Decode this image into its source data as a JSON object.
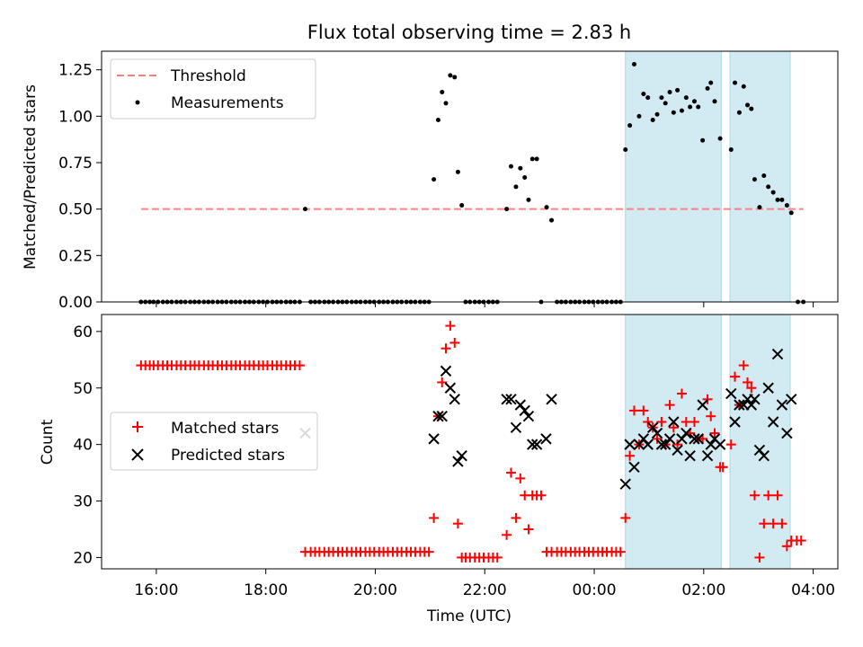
{
  "chart_data": {
    "title": "Flux total observing time = 2.83 h",
    "shaded_intervals_hours": [
      [
        24.57,
        26.32
      ],
      [
        26.48,
        27.58
      ]
    ],
    "shade_color": "#add8e6",
    "top": {
      "type": "scatter",
      "ylabel": "Matched/Predicted stars",
      "ylim": [
        0,
        1.35
      ],
      "yticks": [
        0,
        0.25,
        0.5,
        0.75,
        1.0,
        1.25
      ],
      "ytick_labels": [
        "0.00",
        "0.25",
        "0.50",
        "0.75",
        "1.00",
        "1.25"
      ],
      "threshold": {
        "label": "Threshold",
        "value": 0.5,
        "x_range": [
          15.72,
          27.82
        ],
        "color": "#ff8080"
      },
      "legend": {
        "placement": "top-left",
        "entries": [
          "Threshold",
          "Measurements"
        ]
      },
      "measurements_label": "Measurements",
      "measurements": [
        [
          15.72,
          0
        ],
        [
          15.8,
          0
        ],
        [
          15.88,
          0
        ],
        [
          15.95,
          0
        ],
        [
          16.03,
          0
        ],
        [
          16.12,
          0
        ],
        [
          16.2,
          0
        ],
        [
          16.28,
          0
        ],
        [
          16.37,
          0
        ],
        [
          16.45,
          0
        ],
        [
          16.53,
          0
        ],
        [
          16.62,
          0
        ],
        [
          16.7,
          0
        ],
        [
          16.78,
          0
        ],
        [
          16.87,
          0
        ],
        [
          16.95,
          0
        ],
        [
          17.03,
          0
        ],
        [
          17.12,
          0
        ],
        [
          17.2,
          0
        ],
        [
          17.28,
          0
        ],
        [
          17.37,
          0
        ],
        [
          17.45,
          0
        ],
        [
          17.53,
          0
        ],
        [
          17.62,
          0
        ],
        [
          17.7,
          0
        ],
        [
          17.78,
          0
        ],
        [
          17.87,
          0
        ],
        [
          17.95,
          0
        ],
        [
          18.03,
          0
        ],
        [
          18.12,
          0
        ],
        [
          18.2,
          0
        ],
        [
          18.28,
          0
        ],
        [
          18.37,
          0
        ],
        [
          18.45,
          0
        ],
        [
          18.53,
          0
        ],
        [
          18.62,
          0
        ],
        [
          18.72,
          0.5
        ],
        [
          18.82,
          0
        ],
        [
          18.9,
          0
        ],
        [
          18.98,
          0
        ],
        [
          19.07,
          0
        ],
        [
          19.15,
          0
        ],
        [
          19.23,
          0
        ],
        [
          19.32,
          0
        ],
        [
          19.4,
          0
        ],
        [
          19.48,
          0
        ],
        [
          19.57,
          0
        ],
        [
          19.65,
          0
        ],
        [
          19.73,
          0
        ],
        [
          19.82,
          0
        ],
        [
          19.9,
          0
        ],
        [
          19.98,
          0
        ],
        [
          20.07,
          0
        ],
        [
          20.15,
          0
        ],
        [
          20.23,
          0
        ],
        [
          20.32,
          0
        ],
        [
          20.4,
          0
        ],
        [
          20.48,
          0
        ],
        [
          20.57,
          0
        ],
        [
          20.65,
          0
        ],
        [
          20.73,
          0
        ],
        [
          20.82,
          0
        ],
        [
          20.9,
          0
        ],
        [
          20.98,
          0
        ],
        [
          21.07,
          0.66
        ],
        [
          21.15,
          0.98
        ],
        [
          21.22,
          1.13
        ],
        [
          21.29,
          1.07
        ],
        [
          21.37,
          1.22
        ],
        [
          21.45,
          1.21
        ],
        [
          21.51,
          0.7
        ],
        [
          21.58,
          0.52
        ],
        [
          21.65,
          0
        ],
        [
          21.73,
          0
        ],
        [
          21.82,
          0
        ],
        [
          21.9,
          0
        ],
        [
          21.98,
          0
        ],
        [
          22.07,
          0
        ],
        [
          22.15,
          0
        ],
        [
          22.23,
          0
        ],
        [
          22.4,
          0.5
        ],
        [
          22.48,
          0.73
        ],
        [
          22.57,
          0.62
        ],
        [
          22.65,
          0.72
        ],
        [
          22.73,
          0.67
        ],
        [
          22.8,
          0.55
        ],
        [
          22.87,
          0.77
        ],
        [
          22.95,
          0.77
        ],
        [
          23.03,
          0
        ],
        [
          23.13,
          0.51
        ],
        [
          23.22,
          0.44
        ],
        [
          23.32,
          0
        ],
        [
          23.4,
          0
        ],
        [
          23.48,
          0
        ],
        [
          23.57,
          0
        ],
        [
          23.65,
          0
        ],
        [
          23.73,
          0
        ],
        [
          23.82,
          0
        ],
        [
          23.9,
          0
        ],
        [
          23.98,
          0
        ],
        [
          24.07,
          0
        ],
        [
          24.15,
          0
        ],
        [
          24.23,
          0
        ],
        [
          24.32,
          0
        ],
        [
          24.4,
          0
        ],
        [
          24.48,
          0
        ],
        [
          24.57,
          0.82
        ],
        [
          24.65,
          0.95
        ],
        [
          24.73,
          1.28
        ],
        [
          24.82,
          1.0
        ],
        [
          24.9,
          1.12
        ],
        [
          24.98,
          1.1
        ],
        [
          25.07,
          0.98
        ],
        [
          25.15,
          1.01
        ],
        [
          25.23,
          1.1
        ],
        [
          25.3,
          1.07
        ],
        [
          25.38,
          1.13
        ],
        [
          25.45,
          1.02
        ],
        [
          25.52,
          1.14
        ],
        [
          25.6,
          1.03
        ],
        [
          25.68,
          1.1
        ],
        [
          25.75,
          1.05
        ],
        [
          25.83,
          1.08
        ],
        [
          25.9,
          1.05
        ],
        [
          25.98,
          0.87
        ],
        [
          26.07,
          1.15
        ],
        [
          26.13,
          1.18
        ],
        [
          26.2,
          1.08
        ],
        [
          26.3,
          0.88
        ],
        [
          26.5,
          0.82
        ],
        [
          26.57,
          1.18
        ],
        [
          26.65,
          1.02
        ],
        [
          26.73,
          1.16
        ],
        [
          26.8,
          1.06
        ],
        [
          26.87,
          1.04
        ],
        [
          26.93,
          0.66
        ],
        [
          27.02,
          0.51
        ],
        [
          27.1,
          0.68
        ],
        [
          27.18,
          0.62
        ],
        [
          27.27,
          0.59
        ],
        [
          27.35,
          0.55
        ],
        [
          27.43,
          0.55
        ],
        [
          27.52,
          0.52
        ],
        [
          27.6,
          0.48
        ],
        [
          27.72,
          0
        ],
        [
          27.82,
          0
        ]
      ]
    },
    "bottom": {
      "type": "scatter",
      "xlabel": "Time (UTC)",
      "ylabel": "Count",
      "xlim": [
        15.0,
        28.45
      ],
      "ylim": [
        18,
        63
      ],
      "yticks": [
        20,
        30,
        40,
        50,
        60
      ],
      "xticks": [
        16,
        18,
        20,
        22,
        24,
        26,
        28
      ],
      "xtick_labels": [
        "16:00",
        "18:00",
        "20:00",
        "22:00",
        "00:00",
        "02:00",
        "04:00"
      ],
      "legend": {
        "placement": "center-left",
        "entries": [
          "Matched stars",
          "Predicted stars"
        ]
      },
      "matched_label": "Matched stars",
      "predicted_label": "Predicted stars",
      "matched_color": "#ff0000",
      "predicted_color": "#000000",
      "matched": [
        [
          15.72,
          54
        ],
        [
          15.8,
          54
        ],
        [
          15.88,
          54
        ],
        [
          15.95,
          54
        ],
        [
          16.03,
          54
        ],
        [
          16.12,
          54
        ],
        [
          16.2,
          54
        ],
        [
          16.28,
          54
        ],
        [
          16.37,
          54
        ],
        [
          16.45,
          54
        ],
        [
          16.53,
          54
        ],
        [
          16.62,
          54
        ],
        [
          16.7,
          54
        ],
        [
          16.78,
          54
        ],
        [
          16.87,
          54
        ],
        [
          16.95,
          54
        ],
        [
          17.03,
          54
        ],
        [
          17.12,
          54
        ],
        [
          17.2,
          54
        ],
        [
          17.28,
          54
        ],
        [
          17.37,
          54
        ],
        [
          17.45,
          54
        ],
        [
          17.53,
          54
        ],
        [
          17.62,
          54
        ],
        [
          17.7,
          54
        ],
        [
          17.78,
          54
        ],
        [
          17.87,
          54
        ],
        [
          17.95,
          54
        ],
        [
          18.03,
          54
        ],
        [
          18.12,
          54
        ],
        [
          18.2,
          54
        ],
        [
          18.28,
          54
        ],
        [
          18.37,
          54
        ],
        [
          18.45,
          54
        ],
        [
          18.53,
          54
        ],
        [
          18.62,
          54
        ],
        [
          18.72,
          21
        ],
        [
          18.82,
          21
        ],
        [
          18.9,
          21
        ],
        [
          18.98,
          21
        ],
        [
          19.07,
          21
        ],
        [
          19.15,
          21
        ],
        [
          19.23,
          21
        ],
        [
          19.32,
          21
        ],
        [
          19.4,
          21
        ],
        [
          19.48,
          21
        ],
        [
          19.57,
          21
        ],
        [
          19.65,
          21
        ],
        [
          19.73,
          21
        ],
        [
          19.82,
          21
        ],
        [
          19.9,
          21
        ],
        [
          19.98,
          21
        ],
        [
          20.07,
          21
        ],
        [
          20.15,
          21
        ],
        [
          20.23,
          21
        ],
        [
          20.32,
          21
        ],
        [
          20.4,
          21
        ],
        [
          20.48,
          21
        ],
        [
          20.57,
          21
        ],
        [
          20.65,
          21
        ],
        [
          20.73,
          21
        ],
        [
          20.82,
          21
        ],
        [
          20.9,
          21
        ],
        [
          20.98,
          21
        ],
        [
          21.07,
          27
        ],
        [
          21.15,
          45
        ],
        [
          21.22,
          51
        ],
        [
          21.29,
          57
        ],
        [
          21.37,
          61
        ],
        [
          21.45,
          58
        ],
        [
          21.51,
          26
        ],
        [
          21.58,
          20
        ],
        [
          21.65,
          20
        ],
        [
          21.73,
          20
        ],
        [
          21.82,
          20
        ],
        [
          21.9,
          20
        ],
        [
          21.98,
          20
        ],
        [
          22.07,
          20
        ],
        [
          22.15,
          20
        ],
        [
          22.23,
          20
        ],
        [
          22.4,
          24
        ],
        [
          22.48,
          35
        ],
        [
          22.57,
          27
        ],
        [
          22.65,
          34
        ],
        [
          22.73,
          31
        ],
        [
          22.8,
          25
        ],
        [
          22.87,
          31
        ],
        [
          22.95,
          31
        ],
        [
          23.03,
          31
        ],
        [
          23.13,
          21
        ],
        [
          23.22,
          21
        ],
        [
          23.32,
          21
        ],
        [
          23.4,
          21
        ],
        [
          23.48,
          21
        ],
        [
          23.57,
          21
        ],
        [
          23.65,
          21
        ],
        [
          23.73,
          21
        ],
        [
          23.82,
          21
        ],
        [
          23.9,
          21
        ],
        [
          23.98,
          21
        ],
        [
          24.07,
          21
        ],
        [
          24.15,
          21
        ],
        [
          24.23,
          21
        ],
        [
          24.32,
          21
        ],
        [
          24.4,
          21
        ],
        [
          24.48,
          21
        ],
        [
          24.57,
          27
        ],
        [
          24.65,
          38
        ],
        [
          24.73,
          46
        ],
        [
          24.82,
          40
        ],
        [
          24.9,
          46
        ],
        [
          24.98,
          44
        ],
        [
          25.07,
          43
        ],
        [
          25.15,
          41
        ],
        [
          25.23,
          44
        ],
        [
          25.3,
          40
        ],
        [
          25.38,
          47
        ],
        [
          25.45,
          43
        ],
        [
          25.52,
          40
        ],
        [
          25.6,
          49
        ],
        [
          25.68,
          44
        ],
        [
          25.75,
          42
        ],
        [
          25.83,
          44
        ],
        [
          25.9,
          41
        ],
        [
          25.98,
          41
        ],
        [
          26.07,
          48
        ],
        [
          26.13,
          45
        ],
        [
          26.2,
          42
        ],
        [
          26.3,
          36
        ],
        [
          26.35,
          36
        ],
        [
          26.5,
          40
        ],
        [
          26.57,
          52
        ],
        [
          26.65,
          47
        ],
        [
          26.73,
          54
        ],
        [
          26.8,
          51
        ],
        [
          26.87,
          50
        ],
        [
          26.93,
          31
        ],
        [
          27.02,
          20
        ],
        [
          27.1,
          26
        ],
        [
          27.18,
          31
        ],
        [
          27.27,
          26
        ],
        [
          27.35,
          31
        ],
        [
          27.43,
          26
        ],
        [
          27.52,
          22
        ],
        [
          27.6,
          23
        ],
        [
          27.7,
          23
        ],
        [
          27.78,
          23
        ]
      ],
      "predicted": [
        [
          18.72,
          42
        ],
        [
          21.07,
          41
        ],
        [
          21.15,
          45
        ],
        [
          21.22,
          45
        ],
        [
          21.29,
          53
        ],
        [
          21.37,
          50
        ],
        [
          21.45,
          48
        ],
        [
          21.51,
          37
        ],
        [
          21.58,
          38
        ],
        [
          22.4,
          48
        ],
        [
          22.48,
          48
        ],
        [
          22.57,
          43
        ],
        [
          22.65,
          47
        ],
        [
          22.73,
          46
        ],
        [
          22.8,
          45
        ],
        [
          22.87,
          40
        ],
        [
          22.95,
          40
        ],
        [
          23.12,
          41
        ],
        [
          23.22,
          48
        ],
        [
          24.57,
          33
        ],
        [
          24.65,
          40
        ],
        [
          24.73,
          36
        ],
        [
          24.82,
          40
        ],
        [
          24.9,
          41
        ],
        [
          24.98,
          40
        ],
        [
          25.07,
          43
        ],
        [
          25.15,
          42
        ],
        [
          25.23,
          40
        ],
        [
          25.3,
          40
        ],
        [
          25.38,
          41
        ],
        [
          25.45,
          44
        ],
        [
          25.52,
          39
        ],
        [
          25.6,
          41
        ],
        [
          25.68,
          42
        ],
        [
          25.75,
          38
        ],
        [
          25.83,
          41
        ],
        [
          25.9,
          41
        ],
        [
          25.98,
          47
        ],
        [
          26.07,
          38
        ],
        [
          26.13,
          40
        ],
        [
          26.2,
          41
        ],
        [
          26.3,
          40
        ],
        [
          26.5,
          49
        ],
        [
          26.57,
          44
        ],
        [
          26.65,
          47
        ],
        [
          26.73,
          47
        ],
        [
          26.8,
          48
        ],
        [
          26.87,
          47
        ],
        [
          26.93,
          48
        ],
        [
          27.02,
          39
        ],
        [
          27.1,
          38
        ],
        [
          27.18,
          50
        ],
        [
          27.27,
          44
        ],
        [
          27.35,
          56
        ],
        [
          27.43,
          47
        ],
        [
          27.52,
          42
        ],
        [
          27.6,
          48
        ]
      ]
    }
  }
}
